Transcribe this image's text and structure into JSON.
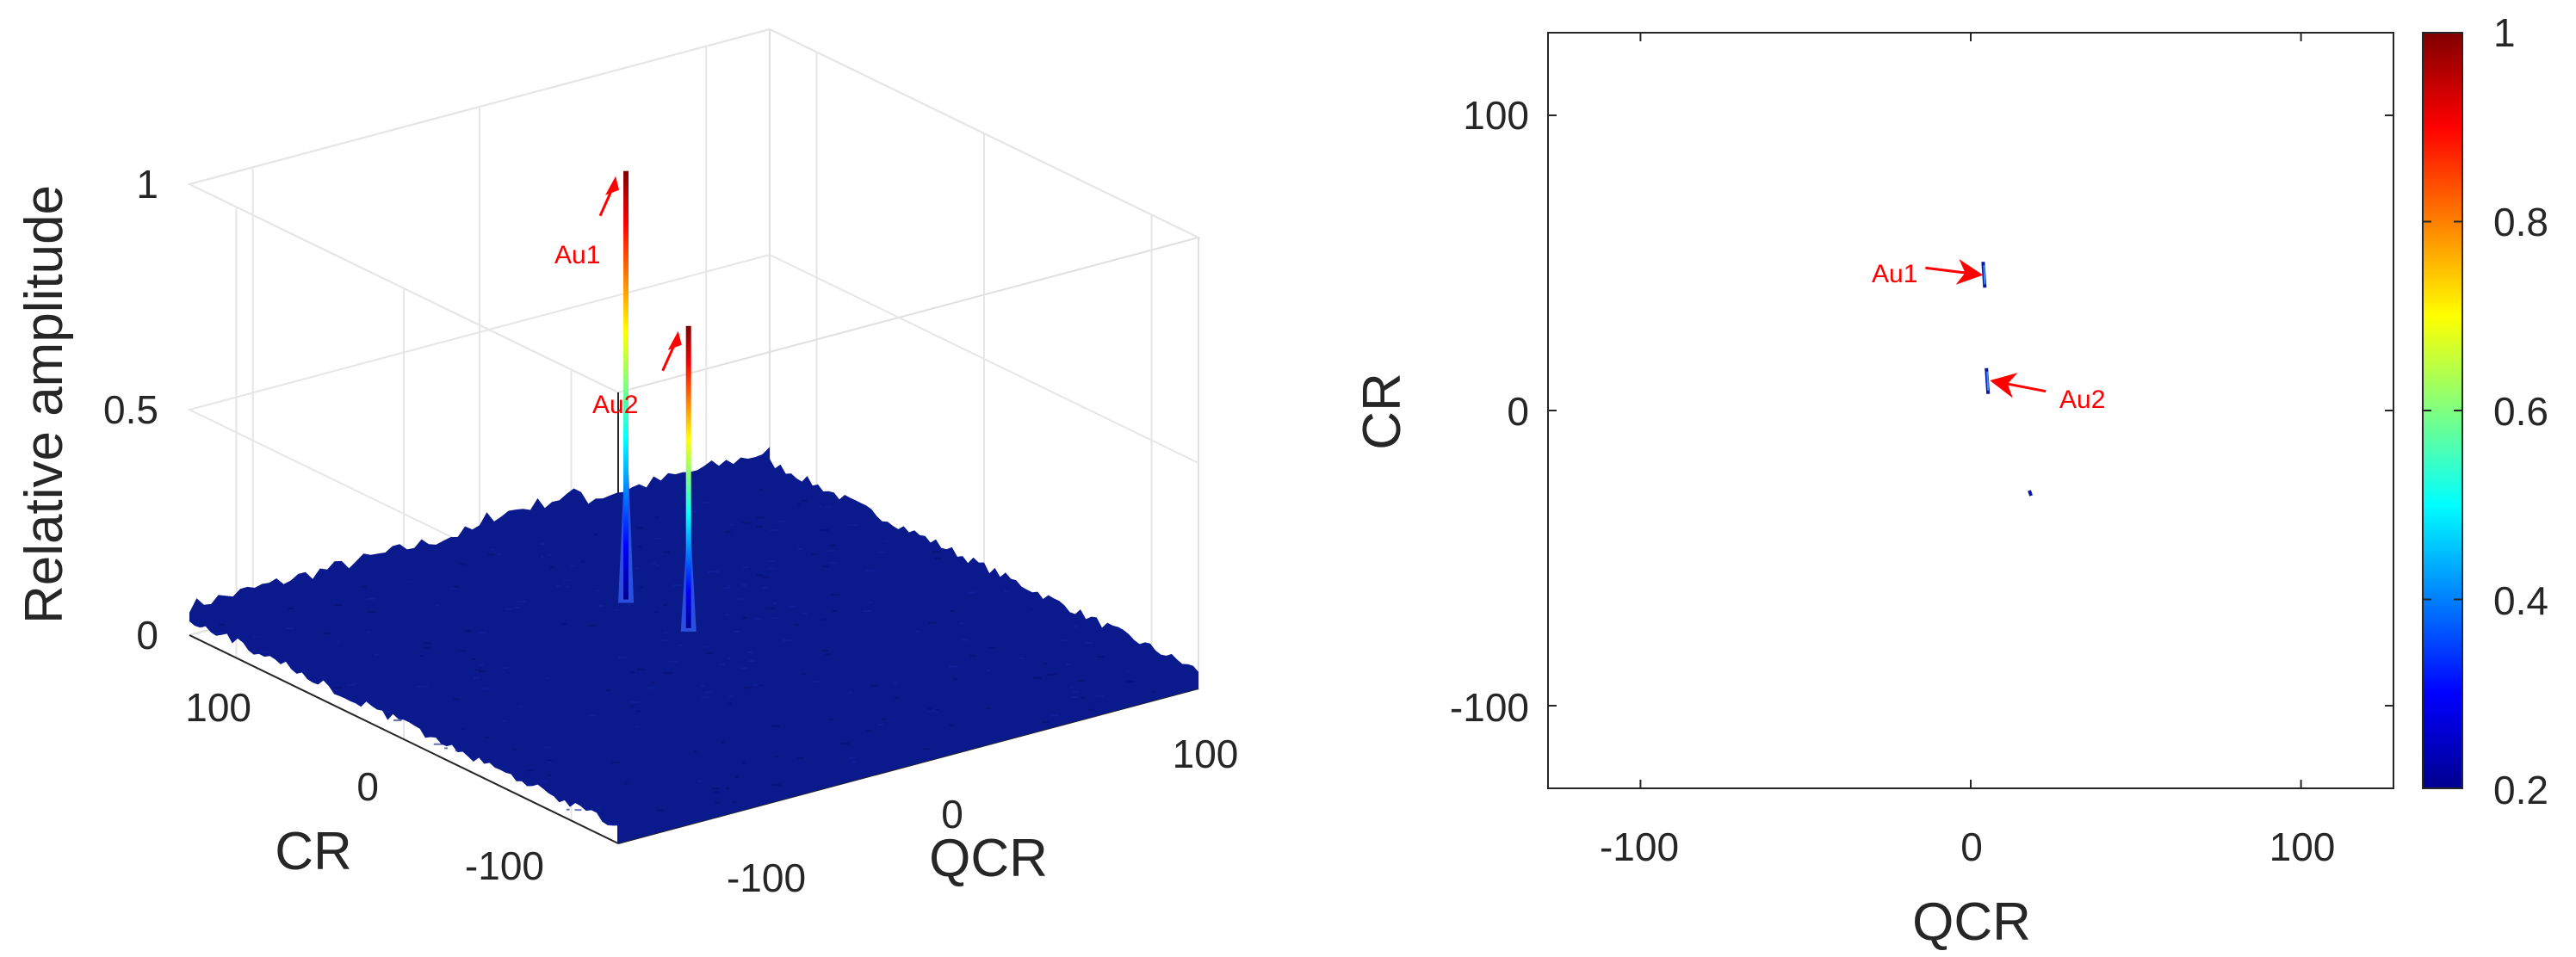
{
  "chart_data": [
    {
      "type": "surface",
      "xlabel": "QCR",
      "ylabel": "CR",
      "zlabel": "Relative amplitude",
      "xlim": [
        -128,
        128
      ],
      "ylim": [
        -128,
        128
      ],
      "zlim": [
        0,
        1
      ],
      "x_ticks": [
        "-100",
        "0",
        "100"
      ],
      "y_ticks": [
        "-100",
        "0",
        "100"
      ],
      "z_ticks": [
        "0",
        "0.5",
        "1"
      ],
      "grid": true,
      "colormap": "jet",
      "clim": [
        0,
        1
      ],
      "background_level": 0.05,
      "peaks": [
        {
          "label": "Au1",
          "x": 4,
          "y": 46,
          "z": 1.0
        },
        {
          "label": "Au2",
          "x": 5,
          "y": 10,
          "z": 0.72
        }
      ],
      "annotation_color": "#ff0000"
    },
    {
      "type": "heatmap",
      "xlabel": "QCR",
      "ylabel": "CR",
      "xlim": [
        -128,
        128
      ],
      "ylim": [
        -128,
        128
      ],
      "x_ticks": [
        "-100",
        "0",
        "100"
      ],
      "y_ticks": [
        "-100",
        "0",
        "100"
      ],
      "colormap": "jet",
      "colorbar": {
        "min": 0.2,
        "max": 1,
        "ticks": [
          "0.2",
          "0.4",
          "0.6",
          "0.8",
          "1"
        ]
      },
      "points": [
        {
          "x": 4,
          "y": 46,
          "value": 0.25
        },
        {
          "x": 5,
          "y": 10,
          "value": 0.3
        },
        {
          "x": 18,
          "y": -28,
          "value": 0.2
        }
      ],
      "annotations": [
        {
          "label": "Au1",
          "x": 4,
          "y": 46
        },
        {
          "label": "Au2",
          "x": 5,
          "y": 10
        }
      ],
      "annotation_color": "#ff0000"
    }
  ]
}
